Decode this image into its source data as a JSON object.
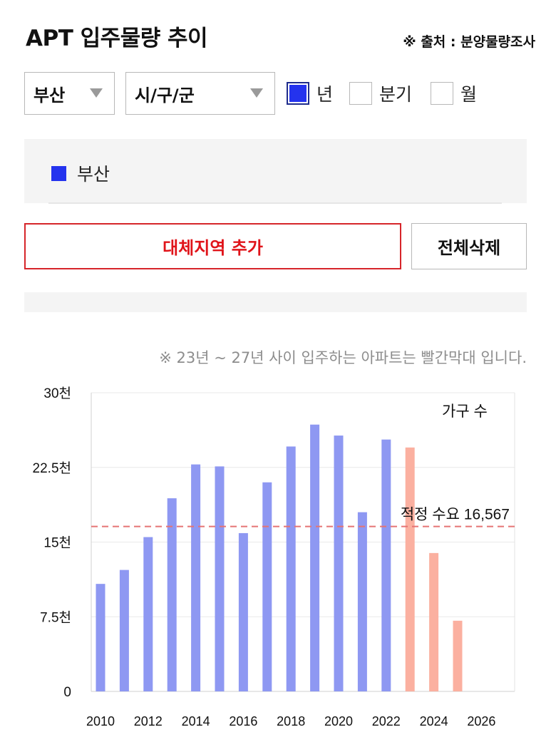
{
  "header": {
    "title": "APT 입주물량 추이",
    "source": "※ 출처 : 분양물량조사"
  },
  "filters": {
    "region": "부산",
    "district": "시/구/군",
    "period_options": [
      {
        "label": "년",
        "checked": true
      },
      {
        "label": "분기",
        "checked": false
      },
      {
        "label": "월",
        "checked": false
      }
    ]
  },
  "legend": {
    "items": [
      {
        "label": "부산",
        "color": "#2433ee"
      }
    ]
  },
  "buttons": {
    "add_region": "대체지역 추가",
    "delete_all": "전체삭제"
  },
  "note": "※ 23년 ~ 27년 사이 입주하는 아파트는 빨간막대 입니다.",
  "chart_data": {
    "type": "bar",
    "ylabel": "가구 수",
    "ylim": [
      0,
      30000
    ],
    "yticks": [
      {
        "value": 0,
        "label": "0"
      },
      {
        "value": 7500,
        "label": "7.5천"
      },
      {
        "value": 15000,
        "label": "15천"
      },
      {
        "value": 22500,
        "label": "22.5천"
      },
      {
        "value": 30000,
        "label": "30천"
      }
    ],
    "xticks": [
      "2010",
      "2012",
      "2014",
      "2016",
      "2018",
      "2020",
      "2022",
      "2024",
      "2026"
    ],
    "categories": [
      "2010",
      "2011",
      "2012",
      "2013",
      "2014",
      "2015",
      "2016",
      "2017",
      "2018",
      "2019",
      "2020",
      "2021",
      "2022",
      "2023",
      "2024",
      "2025",
      "2026"
    ],
    "series": [
      {
        "name": "부산",
        "values": [
          10800,
          12200,
          15500,
          19400,
          22800,
          22600,
          15900,
          21000,
          24600,
          26800,
          25700,
          18000,
          25300,
          24500,
          13900,
          7100,
          0
        ]
      }
    ],
    "highlight_from": "2023",
    "bar_color": "#8e98f2",
    "highlight_color": "#fbb0a0",
    "reference_line": {
      "value": 16567,
      "label": "적정 수요 16,567",
      "color": "#e57373"
    },
    "grid": true
  }
}
